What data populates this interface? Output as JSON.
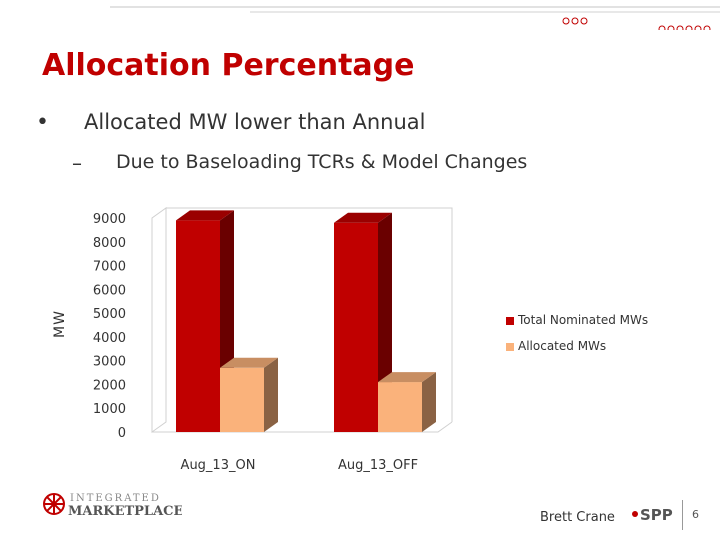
{
  "slide": {
    "title": "Allocation Percentage",
    "bullet1": "Allocated MW lower than Annual",
    "bullet2": "Due to Baseloading TCRs & Model Changes",
    "presenter": "Brett Crane",
    "page_number": "6"
  },
  "footer": {
    "logo_line1": "INTEGRATED",
    "logo_line2": "MARKETPLACE",
    "spp_logo": "SPP"
  },
  "chart_data": {
    "type": "bar",
    "categories": [
      "Aug_13_ON",
      "Aug_13_OFF"
    ],
    "series": [
      {
        "name": "Total Nominated MWs",
        "values": [
          8900,
          8800
        ],
        "color": "#c00000"
      },
      {
        "name": "Allocated MWs",
        "values": [
          2700,
          2100
        ],
        "color": "#fab27b"
      }
    ],
    "ylabel": "MW",
    "yticks": [
      0,
      1000,
      2000,
      3000,
      4000,
      5000,
      6000,
      7000,
      8000,
      9000
    ],
    "ylim": [
      0,
      9000
    ],
    "legend_position": "right",
    "grid": false,
    "style": "3d"
  }
}
